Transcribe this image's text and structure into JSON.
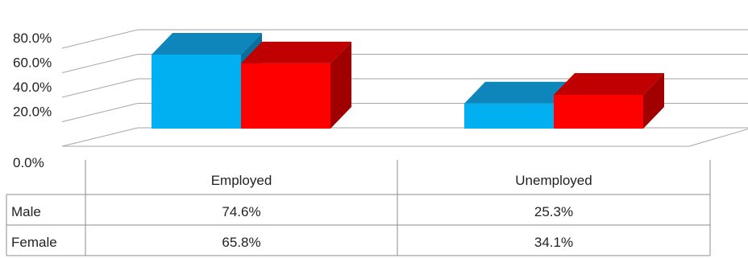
{
  "chart_data": {
    "type": "bar",
    "title": "",
    "xlabel": "",
    "ylabel": "",
    "categories": [
      "Employed",
      "Unemployed"
    ],
    "series": [
      {
        "name": "Male",
        "values": [
          74.6,
          25.3
        ],
        "color": "#00B0F0",
        "top_color": "#0E86BB",
        "side_color": "#0A6F9E",
        "display": [
          "74.6%",
          "25.3%"
        ]
      },
      {
        "name": "Female",
        "values": [
          65.8,
          34.1
        ],
        "color": "#FF0000",
        "top_color": "#C00000",
        "side_color": "#A00000",
        "display": [
          "65.8%",
          "34.1%"
        ]
      }
    ],
    "ylim": [
      0,
      80
    ],
    "yticks": [
      0,
      20,
      40,
      60,
      80
    ],
    "ytick_labels": [
      "0.0%",
      "20.0%",
      "40.0%",
      "60.0%",
      "80.0%"
    ],
    "grid": true,
    "legend": "data-table",
    "style": "3d-clustered-column"
  }
}
